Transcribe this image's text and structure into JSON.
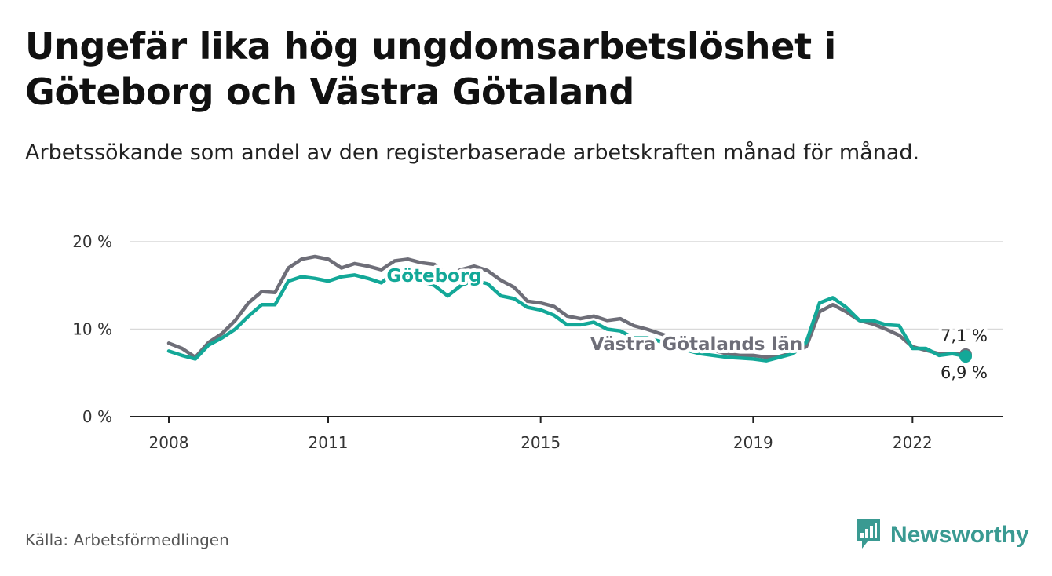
{
  "header": {
    "title": "Ungefär lika hög ungdomsarbetslöshet i Göteborg och Västra Götaland",
    "subtitle": "Arbetssökande som andel av den registerbaserade arbetskraften månad för månad."
  },
  "footer": {
    "source": "Källa: Arbetsförmedlingen",
    "brand": "Newsworthy",
    "brand_icon": "bar-chart-icon"
  },
  "colors": {
    "goteborg": "#13a898",
    "vastra": "#6e6e78",
    "grid": "#d9d9d9",
    "axis": "#222222",
    "brand": "#3a9a92"
  },
  "chart_data": {
    "type": "line",
    "title": "Ungefär lika hög ungdomsarbetslöshet i Göteborg och Västra Götaland",
    "subtitle": "Arbetssökande som andel av den registerbaserade arbetskraften månad för månad.",
    "xlabel": "",
    "ylabel": "",
    "xlim": [
      2008,
      2023
    ],
    "ylim": [
      0,
      20
    ],
    "x_ticks": [
      {
        "value": 2008,
        "label": "2008"
      },
      {
        "value": 2011,
        "label": "2011"
      },
      {
        "value": 2015,
        "label": "2015"
      },
      {
        "value": 2019,
        "label": "2019"
      },
      {
        "value": 2022,
        "label": "2022"
      }
    ],
    "y_ticks": [
      {
        "value": 0,
        "label": "0 %"
      },
      {
        "value": 10,
        "label": "10 %"
      },
      {
        "value": 20,
        "label": "20 %"
      }
    ],
    "grid": true,
    "series": [
      {
        "name": "Västra Götalands län",
        "label": "Västra Götalands län",
        "end_label": "7,1 %",
        "points": [
          [
            2008.0,
            8.4
          ],
          [
            2008.25,
            7.8
          ],
          [
            2008.5,
            6.8
          ],
          [
            2008.75,
            8.5
          ],
          [
            2009.0,
            9.5
          ],
          [
            2009.25,
            11.0
          ],
          [
            2009.5,
            13.0
          ],
          [
            2009.75,
            14.3
          ],
          [
            2010.0,
            14.2
          ],
          [
            2010.25,
            17.0
          ],
          [
            2010.5,
            18.0
          ],
          [
            2010.75,
            18.3
          ],
          [
            2011.0,
            18.0
          ],
          [
            2011.25,
            17.0
          ],
          [
            2011.5,
            17.5
          ],
          [
            2011.75,
            17.2
          ],
          [
            2012.0,
            16.8
          ],
          [
            2012.25,
            17.8
          ],
          [
            2012.5,
            18.0
          ],
          [
            2012.75,
            17.6
          ],
          [
            2013.0,
            17.4
          ],
          [
            2013.25,
            16.2
          ],
          [
            2013.5,
            16.8
          ],
          [
            2013.75,
            17.2
          ],
          [
            2014.0,
            16.7
          ],
          [
            2014.25,
            15.6
          ],
          [
            2014.5,
            14.8
          ],
          [
            2014.75,
            13.2
          ],
          [
            2015.0,
            13.0
          ],
          [
            2015.25,
            12.6
          ],
          [
            2015.5,
            11.5
          ],
          [
            2015.75,
            11.2
          ],
          [
            2016.0,
            11.5
          ],
          [
            2016.25,
            11.0
          ],
          [
            2016.5,
            11.2
          ],
          [
            2016.75,
            10.4
          ],
          [
            2017.0,
            10.0
          ],
          [
            2017.25,
            9.5
          ],
          [
            2017.5,
            9.0
          ],
          [
            2017.75,
            8.5
          ],
          [
            2018.0,
            8.0
          ],
          [
            2018.25,
            7.6
          ],
          [
            2018.5,
            7.2
          ],
          [
            2018.75,
            7.0
          ],
          [
            2019.0,
            7.0
          ],
          [
            2019.25,
            6.8
          ],
          [
            2019.5,
            6.9
          ],
          [
            2019.75,
            7.3
          ],
          [
            2020.0,
            8.0
          ],
          [
            2020.25,
            12.0
          ],
          [
            2020.5,
            12.8
          ],
          [
            2020.75,
            12.0
          ],
          [
            2021.0,
            11.0
          ],
          [
            2021.25,
            10.6
          ],
          [
            2021.5,
            10.0
          ],
          [
            2021.75,
            9.3
          ],
          [
            2022.0,
            8.0
          ],
          [
            2022.25,
            7.6
          ],
          [
            2022.5,
            7.2
          ],
          [
            2022.75,
            7.2
          ],
          [
            2023.0,
            7.1
          ]
        ]
      },
      {
        "name": "Göteborg",
        "label": "Göteborg",
        "end_label": "6,9 %",
        "points": [
          [
            2008.0,
            7.5
          ],
          [
            2008.25,
            7.0
          ],
          [
            2008.5,
            6.6
          ],
          [
            2008.75,
            8.2
          ],
          [
            2009.0,
            9.0
          ],
          [
            2009.25,
            10.0
          ],
          [
            2009.5,
            11.5
          ],
          [
            2009.75,
            12.8
          ],
          [
            2010.0,
            12.8
          ],
          [
            2010.25,
            15.5
          ],
          [
            2010.5,
            16.0
          ],
          [
            2010.75,
            15.8
          ],
          [
            2011.0,
            15.5
          ],
          [
            2011.25,
            16.0
          ],
          [
            2011.5,
            16.2
          ],
          [
            2011.75,
            15.8
          ],
          [
            2012.0,
            15.3
          ],
          [
            2012.25,
            16.5
          ],
          [
            2012.5,
            16.0
          ],
          [
            2012.75,
            15.5
          ],
          [
            2013.0,
            15.0
          ],
          [
            2013.25,
            13.8
          ],
          [
            2013.5,
            15.0
          ],
          [
            2013.75,
            15.6
          ],
          [
            2014.0,
            15.2
          ],
          [
            2014.25,
            13.8
          ],
          [
            2014.5,
            13.5
          ],
          [
            2014.75,
            12.5
          ],
          [
            2015.0,
            12.2
          ],
          [
            2015.25,
            11.6
          ],
          [
            2015.5,
            10.5
          ],
          [
            2015.75,
            10.5
          ],
          [
            2016.0,
            10.8
          ],
          [
            2016.25,
            10.0
          ],
          [
            2016.5,
            9.8
          ],
          [
            2016.75,
            9.0
          ],
          [
            2017.0,
            9.0
          ],
          [
            2017.25,
            8.6
          ],
          [
            2017.5,
            8.0
          ],
          [
            2017.75,
            7.6
          ],
          [
            2018.0,
            7.2
          ],
          [
            2018.25,
            7.0
          ],
          [
            2018.5,
            6.8
          ],
          [
            2018.75,
            6.7
          ],
          [
            2019.0,
            6.6
          ],
          [
            2019.25,
            6.4
          ],
          [
            2019.5,
            6.8
          ],
          [
            2019.75,
            7.2
          ],
          [
            2020.0,
            8.5
          ],
          [
            2020.25,
            13.0
          ],
          [
            2020.5,
            13.6
          ],
          [
            2020.75,
            12.5
          ],
          [
            2021.0,
            11.0
          ],
          [
            2021.25,
            11.0
          ],
          [
            2021.5,
            10.5
          ],
          [
            2021.75,
            10.4
          ],
          [
            2022.0,
            7.8
          ],
          [
            2022.25,
            7.8
          ],
          [
            2022.5,
            7.0
          ],
          [
            2022.75,
            7.2
          ],
          [
            2023.0,
            6.9
          ]
        ]
      }
    ]
  }
}
